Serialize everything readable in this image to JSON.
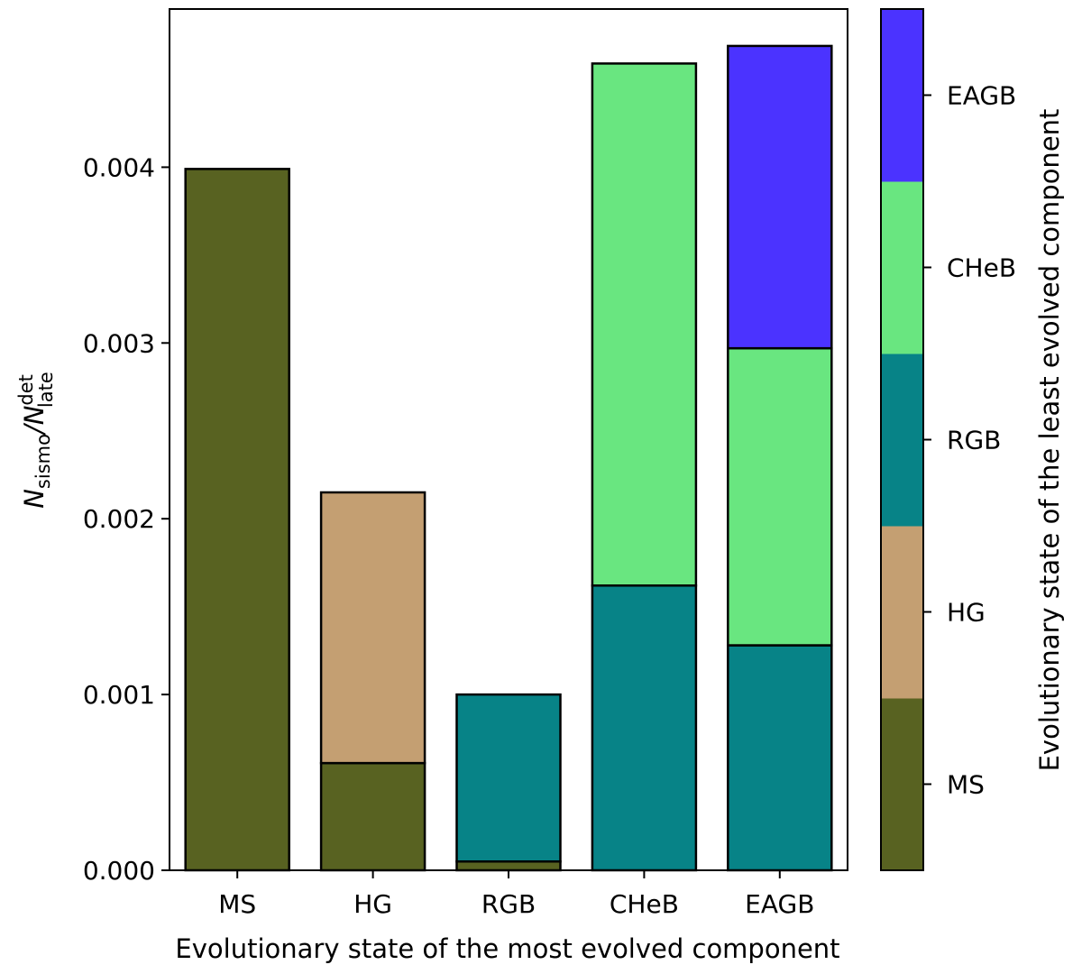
{
  "chart_data": {
    "type": "bar",
    "stacked": true,
    "categories": [
      "MS",
      "HG",
      "RGB",
      "CHeB",
      "EAGB"
    ],
    "series": [
      {
        "name": "MS",
        "color": "#586221",
        "values": [
          0.00399,
          0.00061,
          5e-05,
          0.0,
          0.0
        ]
      },
      {
        "name": "HG",
        "color": "#c49f72",
        "values": [
          0.0,
          0.00154,
          0.0,
          0.0,
          0.0
        ]
      },
      {
        "name": "RGB",
        "color": "#078387",
        "values": [
          0.0,
          0.0,
          0.00095,
          0.00162,
          0.00128
        ]
      },
      {
        "name": "CHeB",
        "color": "#69e680",
        "values": [
          0.0,
          0.0,
          0.0,
          0.00297,
          0.00169
        ]
      },
      {
        "name": "EAGB",
        "color": "#4b33ff",
        "values": [
          0.0,
          0.0,
          0.0,
          0.0,
          0.00172
        ]
      }
    ],
    "ylim": [
      0,
      0.0049
    ],
    "yticks": [
      "0.000",
      "0.001",
      "0.002",
      "0.003",
      "0.004"
    ],
    "ytick_values": [
      0,
      0.001,
      0.002,
      0.003,
      0.004
    ],
    "xlabel": "Evolutionary state of the most evolved component",
    "ylabel": {
      "main": "N",
      "sub1": "sismo",
      "sep": "/N",
      "sub2": "late",
      "sup2": "det"
    },
    "colorbar": {
      "label": "Evolutionary state of the least evolved component",
      "ticks": [
        "MS",
        "HG",
        "RGB",
        "CHeB",
        "EAGB"
      ],
      "colors": [
        "#586221",
        "#c49f72",
        "#078387",
        "#69e680",
        "#4b33ff"
      ]
    }
  }
}
